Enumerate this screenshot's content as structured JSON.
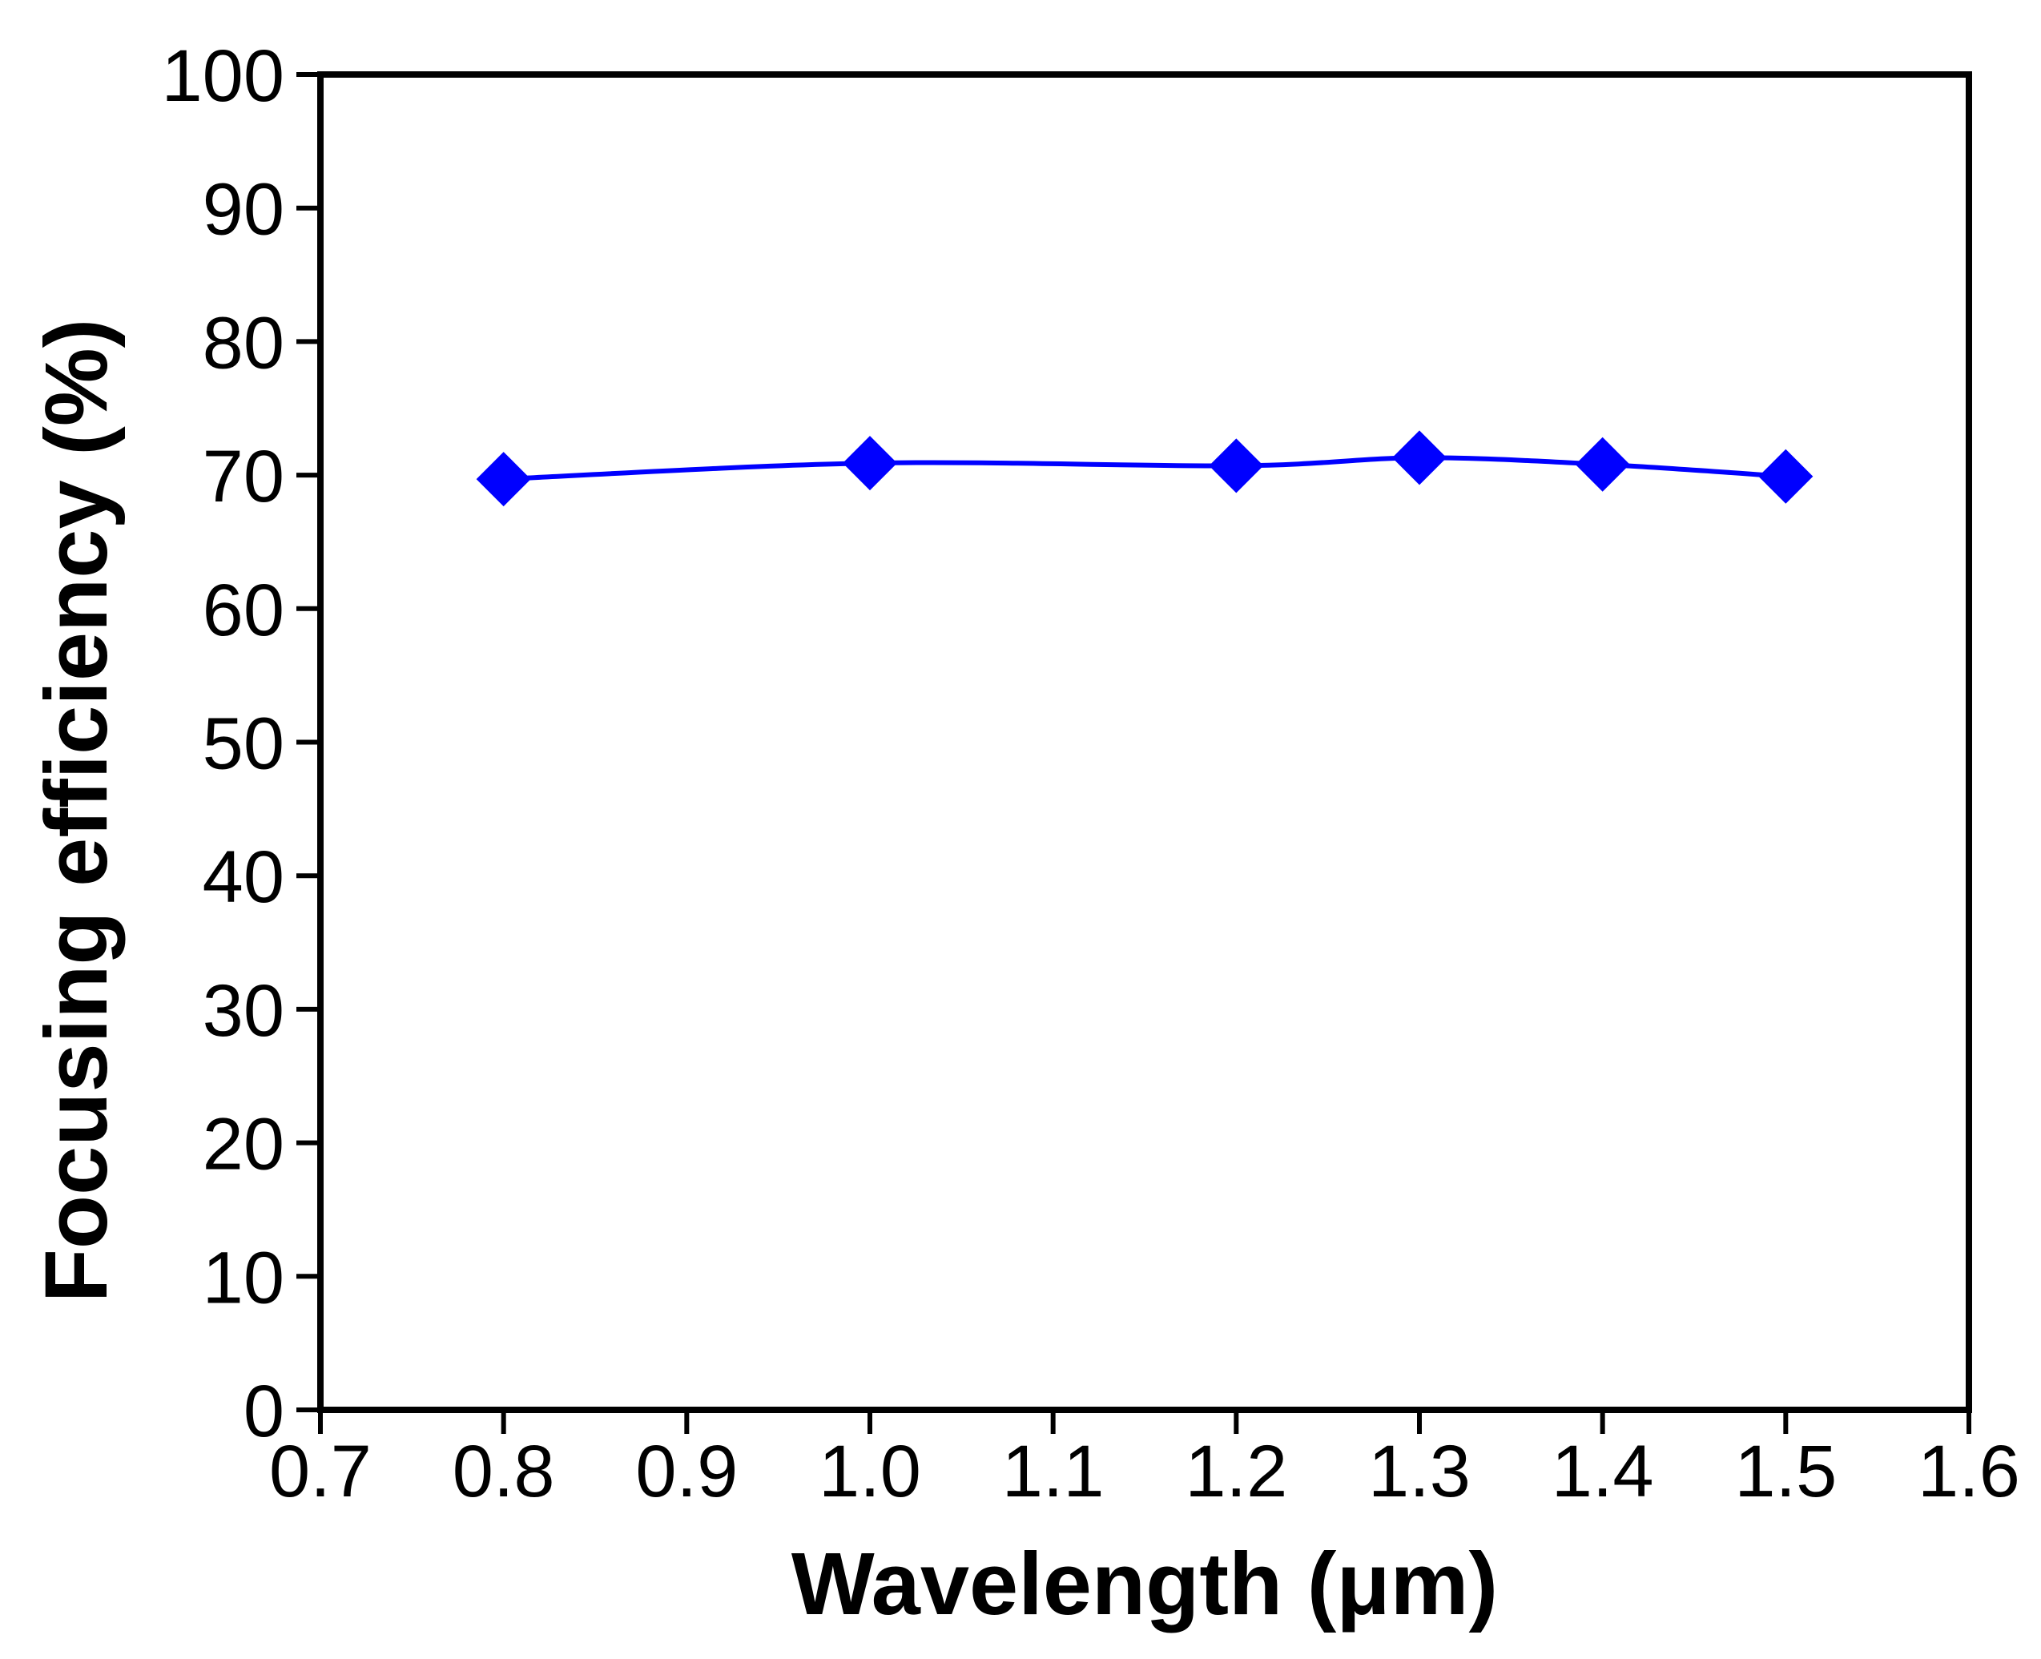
{
  "chart_data": {
    "type": "line",
    "title": "",
    "xlabel": "Wavelength (μm)",
    "ylabel": "Focusing efficiency (%)",
    "xlim": [
      0.7,
      1.6
    ],
    "ylim": [
      0,
      100
    ],
    "x_ticks": [
      "0.7",
      "0.8",
      "0.9",
      "1.0",
      "1.1",
      "1.2",
      "1.3",
      "1.4",
      "1.5",
      "1.6"
    ],
    "y_ticks": [
      "0",
      "10",
      "20",
      "30",
      "40",
      "50",
      "60",
      "70",
      "80",
      "90",
      "100"
    ],
    "grid": false,
    "series": [
      {
        "name": "Focusing efficiency",
        "marker": "diamond",
        "color": "#0000ff",
        "x": [
          0.8,
          1.0,
          1.2,
          1.3,
          1.4,
          1.5
        ],
        "values": [
          69.7,
          70.9,
          70.7,
          71.3,
          70.8,
          69.9
        ]
      }
    ]
  }
}
